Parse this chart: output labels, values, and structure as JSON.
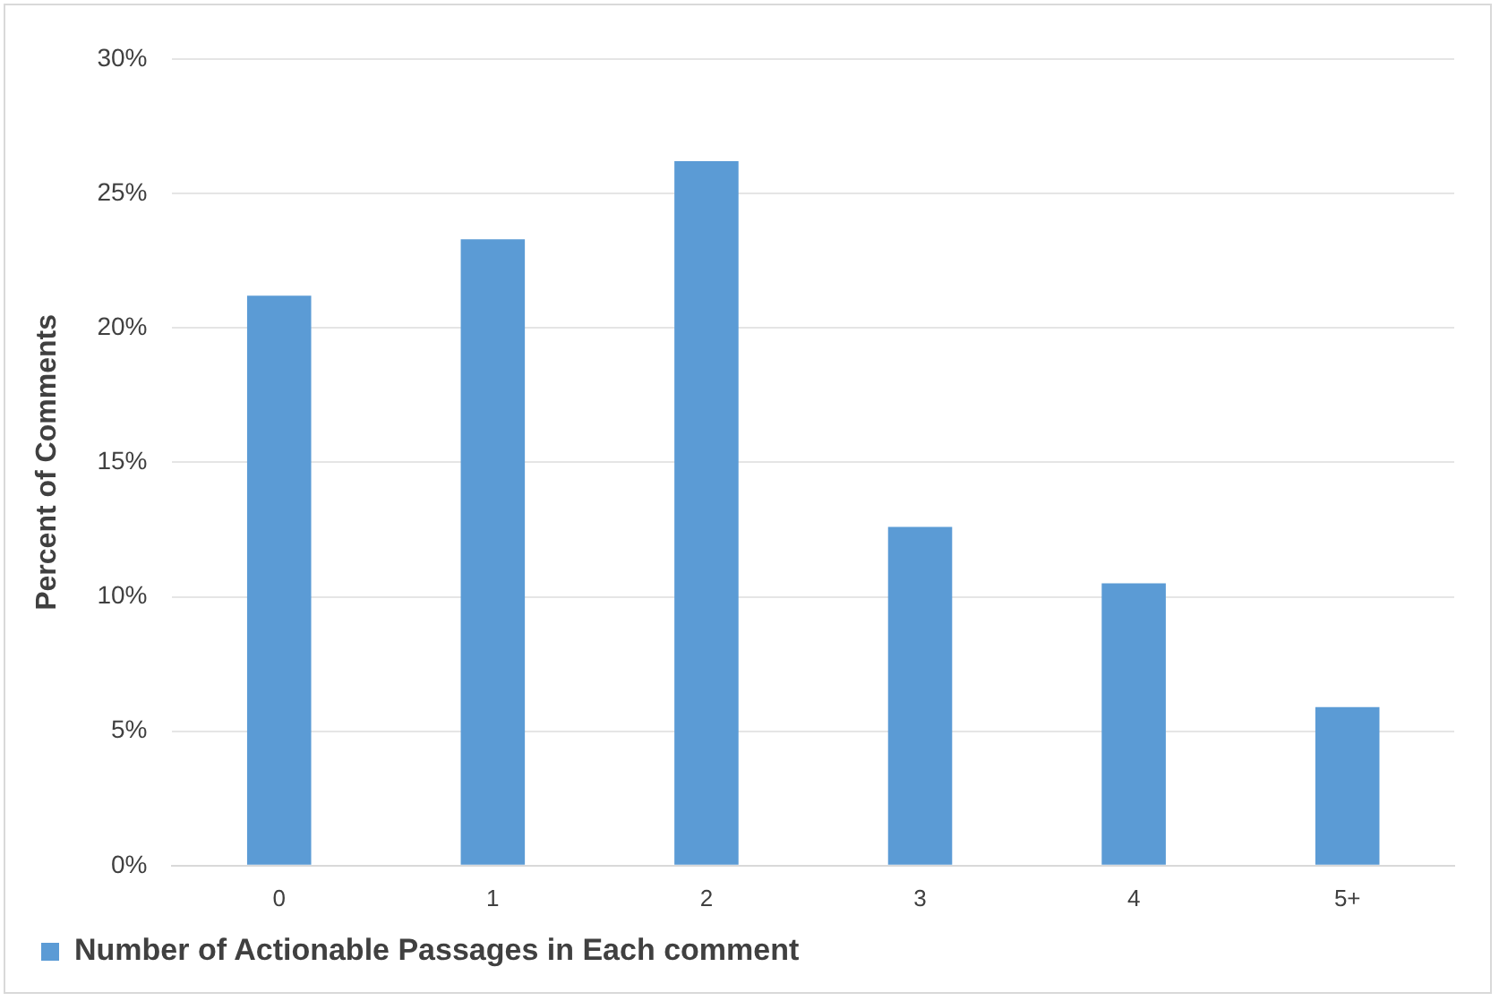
{
  "chart_data": {
    "type": "bar",
    "ylabel": "Percent of Comments",
    "categories": [
      "0",
      "1",
      "2",
      "3",
      "4",
      "5+"
    ],
    "series": [
      {
        "name": "Number of Actionable Passages in Each comment",
        "color": "#5b9bd5",
        "values": [
          21.2,
          23.3,
          26.2,
          12.6,
          10.5,
          5.9
        ]
      }
    ],
    "ylim": [
      0,
      30
    ],
    "yticks": [
      {
        "value": 0,
        "label": "0%"
      },
      {
        "value": 5,
        "label": "5%"
      },
      {
        "value": 10,
        "label": "10%"
      },
      {
        "value": 15,
        "label": "15%"
      },
      {
        "value": 20,
        "label": "20%"
      },
      {
        "value": 25,
        "label": "25%"
      },
      {
        "value": 30,
        "label": "30%"
      }
    ],
    "grid": "y",
    "legend": "bottom left"
  }
}
